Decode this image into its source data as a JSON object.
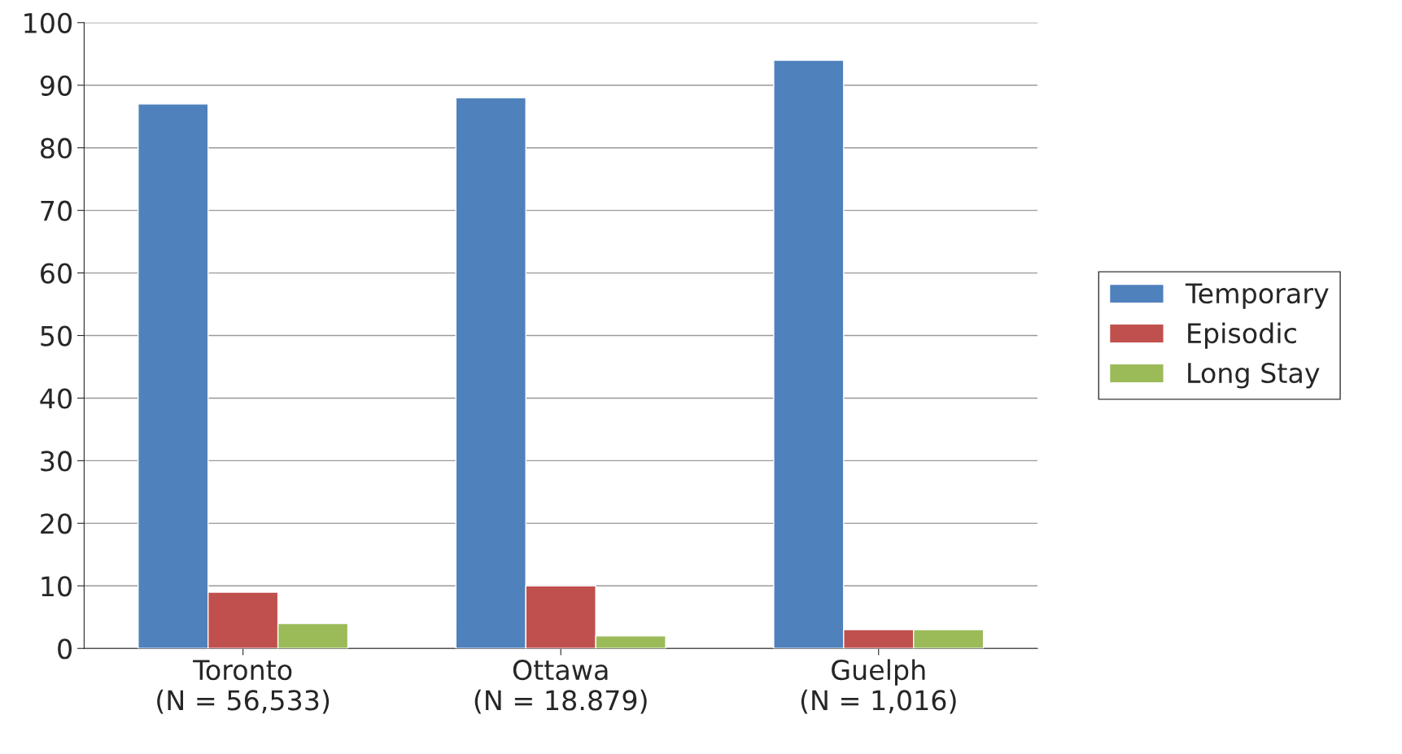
{
  "chart_data": {
    "type": "bar",
    "categories": [
      "Toronto\n(N = 56,533)",
      "Ottawa\n(N = 18.879)",
      "Guelph\n(N = 1,016)"
    ],
    "series": [
      {
        "name": "Temporary",
        "color": "#4f81bd",
        "values": [
          87,
          88,
          94
        ]
      },
      {
        "name": "Episodic",
        "color": "#c0504d",
        "values": [
          9,
          10,
          3
        ]
      },
      {
        "name": "Long Stay",
        "color": "#9bbb59",
        "values": [
          4,
          2,
          3
        ]
      }
    ],
    "ylim": [
      0,
      100
    ],
    "yticks": [
      0,
      10,
      20,
      30,
      40,
      50,
      60,
      70,
      80,
      90,
      100
    ],
    "grid": "y",
    "legend": "right"
  }
}
